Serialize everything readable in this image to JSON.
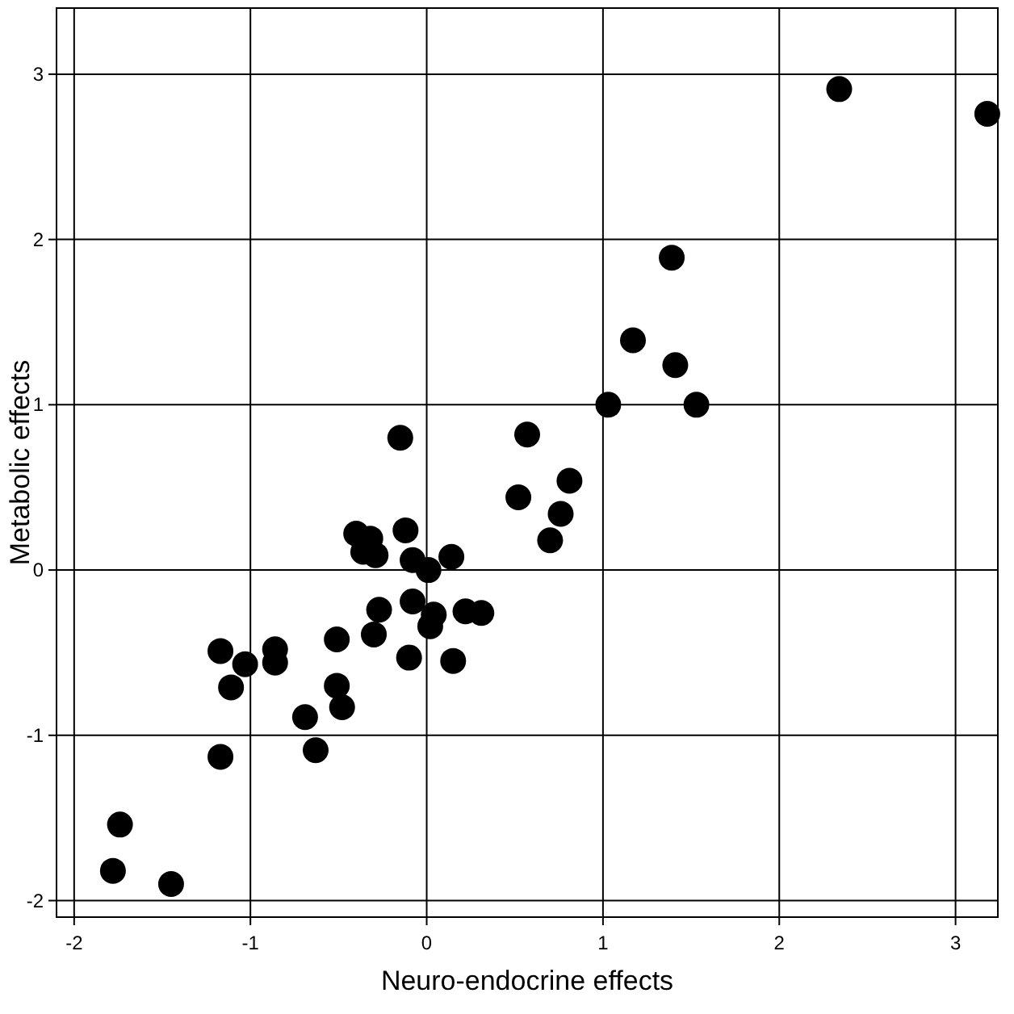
{
  "chart_data": {
    "type": "scatter",
    "xlabel": "Neuro-endocrine effects",
    "ylabel": "Metabolic effects",
    "xlim": [
      -2.1,
      3.24
    ],
    "ylim": [
      -2.1,
      3.4
    ],
    "xticks": [
      -2,
      -1,
      0,
      1,
      2,
      3
    ],
    "yticks": [
      -2,
      -1,
      0,
      1,
      2,
      3
    ],
    "grid": true,
    "marker": "circle",
    "series": [
      {
        "color": "#000000",
        "x": [
          2.34,
          3.18,
          1.39,
          1.17,
          1.41,
          1.03,
          1.53,
          -0.15,
          0.57,
          0.81,
          0.52,
          0.76,
          0.7,
          -0.4,
          -0.32,
          -0.12,
          -0.36,
          -0.29,
          -0.08,
          0.01,
          0.14,
          -0.27,
          -0.08,
          0.04,
          0.02,
          0.22,
          0.31,
          -0.3,
          -0.51,
          -0.1,
          0.15,
          -1.17,
          -1.03,
          -0.86,
          -0.86,
          -1.11,
          -0.51,
          -0.48,
          -0.69,
          -0.63,
          -1.17,
          -1.74,
          -1.78,
          -1.45
        ],
        "values": [
          2.91,
          2.76,
          1.89,
          1.39,
          1.24,
          1.0,
          1.0,
          0.8,
          0.82,
          0.54,
          0.44,
          0.34,
          0.18,
          0.22,
          0.19,
          0.24,
          0.11,
          0.09,
          0.06,
          0.0,
          0.08,
          -0.24,
          -0.19,
          -0.27,
          -0.34,
          -0.25,
          -0.26,
          -0.39,
          -0.42,
          -0.53,
          -0.55,
          -0.49,
          -0.57,
          -0.48,
          -0.56,
          -0.71,
          -0.7,
          -0.83,
          -0.89,
          -1.09,
          -1.13,
          -1.54,
          -1.82,
          -1.9
        ]
      }
    ]
  }
}
